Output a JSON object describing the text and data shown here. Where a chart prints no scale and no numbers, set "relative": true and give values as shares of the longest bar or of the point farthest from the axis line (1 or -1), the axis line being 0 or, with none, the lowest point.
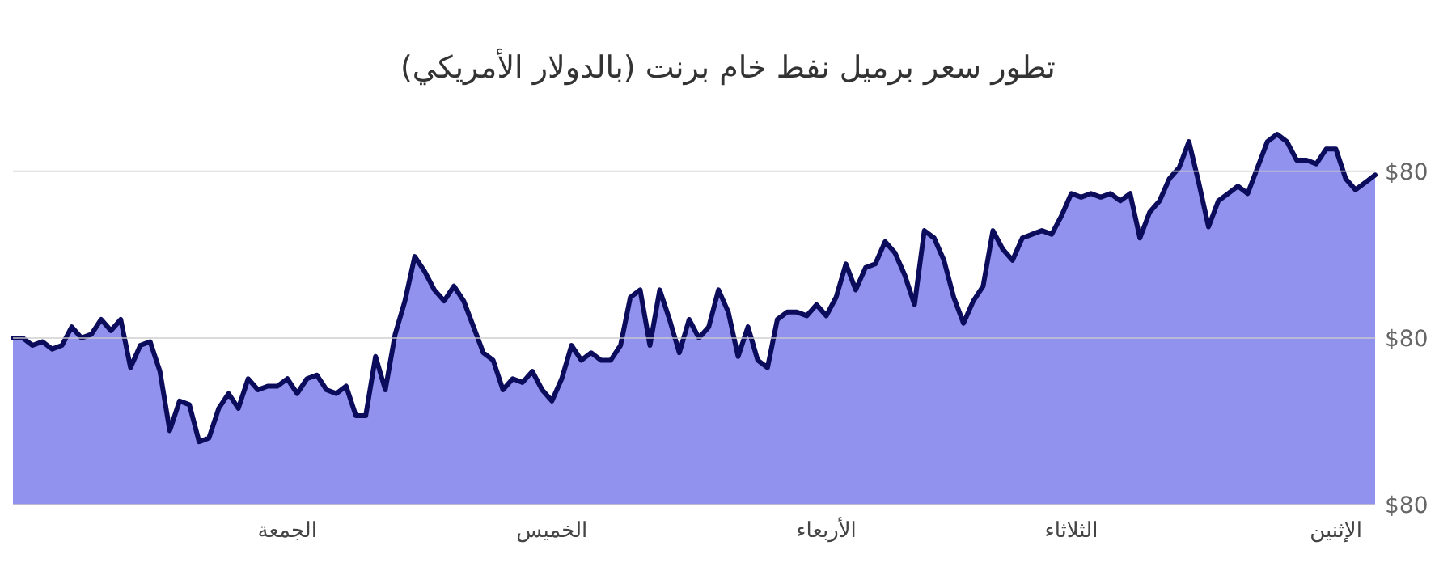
{
  "chart_data": {
    "type": "area",
    "title": "تطور سعر برميل نفط خام برنت (بالدولار الأمريكي)",
    "relative": true,
    "categories": [
      null,
      null,
      null,
      null,
      null,
      null,
      null,
      null,
      null,
      null,
      null,
      null,
      null,
      null,
      null,
      null,
      null,
      null,
      null,
      null,
      null,
      null,
      null,
      null,
      null,
      null,
      null,
      null,
      "الجمعة",
      null,
      null,
      null,
      null,
      null,
      null,
      null,
      null,
      null,
      null,
      null,
      null,
      null,
      null,
      null,
      null,
      null,
      null,
      null,
      null,
      null,
      null,
      null,
      null,
      null,
      null,
      "الخميس",
      null,
      null,
      null,
      null,
      null,
      null,
      null,
      null,
      null,
      null,
      null,
      null,
      null,
      null,
      null,
      null,
      null,
      null,
      null,
      null,
      null,
      null,
      null,
      null,
      null,
      null,
      null,
      "الأربعاء",
      null,
      null,
      null,
      null,
      null,
      null,
      null,
      null,
      null,
      null,
      null,
      null,
      null,
      null,
      null,
      null,
      null,
      null,
      null,
      null,
      null,
      null,
      null,
      null,
      "الثلاثاء",
      null,
      null,
      null,
      null,
      null,
      null,
      null,
      null,
      null,
      null,
      null,
      null,
      null,
      null,
      null,
      null,
      null,
      null,
      null,
      null,
      null,
      null,
      null,
      null,
      null,
      null,
      "الإثنين",
      null,
      null,
      null,
      null
    ],
    "ref_lines": [
      {
        "axis": "y",
        "value": 0.9,
        "color": "#cccccc"
      },
      {
        "axis": "y",
        "value": 0.45,
        "color": "#cccccc"
      },
      {
        "axis": "y",
        "value": 0,
        "color": "#cccccc"
      }
    ],
    "annotations": [
      "$80",
      "$80",
      "$80"
    ],
    "series": [
      {
        "color": "#9191ee",
        "values": [
          0.45,
          0.45,
          0.43,
          0.44,
          0.42,
          0.43,
          0.48,
          0.45,
          0.46,
          0.5,
          0.47,
          0.5,
          0.37,
          0.43,
          0.44,
          0.36,
          0.2,
          0.28,
          0.27,
          0.17,
          0.18,
          0.26,
          0.3,
          0.26,
          0.34,
          0.31,
          0.32,
          0.32,
          0.34,
          0.3,
          0.34,
          0.35,
          0.31,
          0.3,
          0.32,
          0.24,
          0.24,
          0.4,
          0.31,
          0.46,
          0.55,
          0.67,
          0.63,
          0.58,
          0.55,
          0.59,
          0.55,
          0.48,
          0.41,
          0.39,
          0.31,
          0.34,
          0.33,
          0.36,
          0.31,
          0.28,
          0.34,
          0.43,
          0.39,
          0.41,
          0.39,
          0.39,
          0.43,
          0.56,
          0.58,
          0.43,
          0.58,
          0.5,
          0.41,
          0.5,
          0.45,
          0.48,
          0.58,
          0.52,
          0.4,
          0.48,
          0.39,
          0.37,
          0.5,
          0.52,
          0.52,
          0.51,
          0.54,
          0.51,
          0.56,
          0.65,
          0.58,
          0.64,
          0.65,
          0.71,
          0.68,
          0.62,
          0.54,
          0.74,
          0.72,
          0.66,
          0.56,
          0.49,
          0.55,
          0.59,
          0.74,
          0.69,
          0.66,
          0.72,
          0.73,
          0.74,
          0.73,
          0.78,
          0.84,
          0.83,
          0.84,
          0.83,
          0.84,
          0.82,
          0.84,
          0.72,
          0.79,
          0.82,
          0.88,
          0.91,
          0.98,
          0.87,
          0.75,
          0.82,
          0.84,
          0.86,
          0.84,
          0.91,
          0.98,
          1,
          0.98,
          0.93,
          0.93,
          0.92,
          0.96,
          0.96,
          0.88,
          0.85,
          0.87,
          0.89
        ]
      }
    ]
  }
}
